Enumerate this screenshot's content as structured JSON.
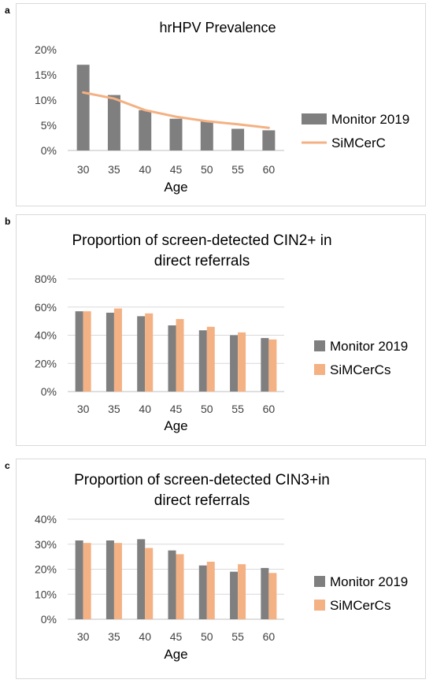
{
  "panel_labels": [
    "a",
    "b",
    "c"
  ],
  "colors": {
    "monitor": "#7f7f7f",
    "simcerc": "#f4b183",
    "gridline": "#d9d9d9",
    "tick_text": "#404040"
  },
  "chart_data": [
    {
      "type": "bar+line",
      "title": "hrHPV Prevalence",
      "title_lines": [
        "hrHPV Prevalence"
      ],
      "xlabel": "Age",
      "ylabel": "",
      "categories": [
        "30",
        "35",
        "40",
        "45",
        "50",
        "55",
        "60"
      ],
      "ylim": [
        0,
        20
      ],
      "yticks": [
        "0%",
        "5%",
        "10%",
        "15%",
        "20%"
      ],
      "grid": false,
      "legend_position": "right",
      "series": [
        {
          "name": "Monitor 2019",
          "kind": "bar",
          "values": [
            17.0,
            11.0,
            8.0,
            6.3,
            5.8,
            4.3,
            4.0
          ]
        },
        {
          "name": "SiMCerC",
          "kind": "line",
          "values": [
            11.5,
            10.3,
            8.0,
            6.7,
            5.8,
            5.2,
            4.5
          ]
        }
      ]
    },
    {
      "type": "bar",
      "title": "Proportion of screen-detected CIN2+ in direct referrals",
      "title_lines": [
        "Proportion of screen-detected CIN2+ in",
        "direct referrals"
      ],
      "xlabel": "Age",
      "ylabel": "",
      "categories": [
        "30",
        "35",
        "40",
        "45",
        "50",
        "55",
        "60"
      ],
      "ylim": [
        0,
        80
      ],
      "yticks": [
        "0%",
        "20%",
        "40%",
        "60%",
        "80%"
      ],
      "grid": true,
      "legend_position": "right",
      "series": [
        {
          "name": "Monitor 2019",
          "kind": "bar",
          "values": [
            57,
            56,
            53.5,
            47,
            43.5,
            40,
            38
          ]
        },
        {
          "name": "SiMCerCs",
          "kind": "bar",
          "values": [
            57,
            59,
            55.5,
            51.5,
            46,
            42,
            37
          ]
        }
      ]
    },
    {
      "type": "bar",
      "title": "Proportion of screen-detected CIN3+in direct referrals",
      "title_lines": [
        "Proportion of screen-detected CIN3+in",
        "direct referrals"
      ],
      "xlabel": "Age",
      "ylabel": "",
      "categories": [
        "30",
        "35",
        "40",
        "45",
        "50",
        "55",
        "60"
      ],
      "ylim": [
        0,
        40
      ],
      "yticks": [
        "0%",
        "10%",
        "20%",
        "30%",
        "40%"
      ],
      "grid": true,
      "legend_position": "right",
      "series": [
        {
          "name": "Monitor 2019",
          "kind": "bar",
          "values": [
            31.5,
            31.5,
            32,
            27.5,
            21.5,
            19,
            20.5
          ]
        },
        {
          "name": "SiMCerCs",
          "kind": "bar",
          "values": [
            30.5,
            30.5,
            28.5,
            26,
            23,
            22,
            18.5
          ]
        }
      ]
    }
  ]
}
